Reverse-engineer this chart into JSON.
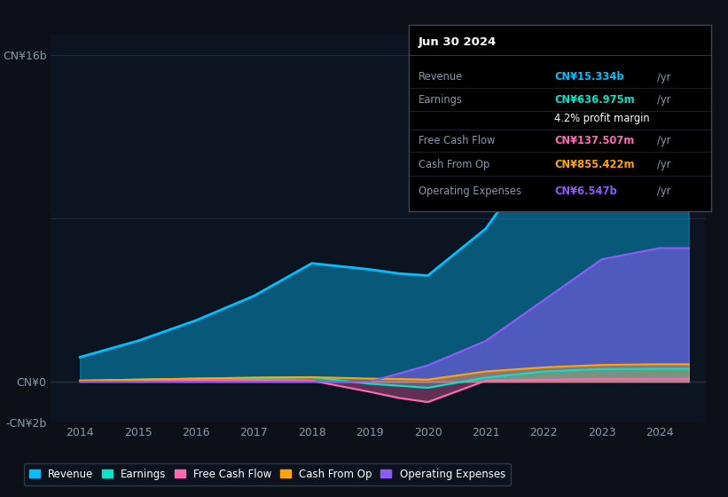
{
  "background_color": "#0d1117",
  "plot_bg_color": "#0d1421",
  "grid_color": "#1e2a3a",
  "ylim": [
    -2000000000,
    17000000000
  ],
  "years_x": [
    2014,
    2015,
    2016,
    2017,
    2018,
    2019,
    2019.5,
    2020,
    2021,
    2022,
    2023,
    2024,
    2024.5
  ],
  "revenue": [
    1200000000,
    2000000000,
    3000000000,
    4200000000,
    5800000000,
    5500000000,
    5300000000,
    5200000000,
    7500000000,
    11500000000,
    14800000000,
    15334000000,
    15334000000
  ],
  "earnings": [
    50000000,
    100000000,
    150000000,
    180000000,
    220000000,
    -100000000,
    -200000000,
    -300000000,
    200000000,
    500000000,
    620000000,
    636975000,
    636975000
  ],
  "free_cash_flow": [
    20000000,
    40000000,
    60000000,
    80000000,
    50000000,
    -500000000,
    -800000000,
    -1000000000,
    50000000,
    100000000,
    130000000,
    137507000,
    137507000
  ],
  "cash_from_op": [
    50000000,
    100000000,
    150000000,
    200000000,
    220000000,
    150000000,
    130000000,
    100000000,
    500000000,
    700000000,
    820000000,
    855422000,
    855422000
  ],
  "op_expenses": [
    0,
    0,
    0,
    0,
    0,
    0,
    400000000,
    800000000,
    2000000000,
    4000000000,
    6000000000,
    6547000000,
    6547000000
  ],
  "revenue_color": "#00bfff",
  "earnings_color": "#00e5cc",
  "fcf_color": "#ff69b4",
  "cashop_color": "#ffa500",
  "opex_color": "#8b5cf6",
  "info_box": {
    "date": "Jun 30 2024",
    "revenue_val": "CN¥15.334b",
    "earnings_val": "CN¥636.975m",
    "profit_margin": "4.2%",
    "fcf_val": "CN¥137.507m",
    "cashop_val": "CN¥855.422m",
    "opex_val": "CN¥6.547b"
  },
  "legend_items": [
    {
      "label": "Revenue",
      "color": "#00bfff"
    },
    {
      "label": "Earnings",
      "color": "#00e5cc"
    },
    {
      "label": "Free Cash Flow",
      "color": "#ff69b4"
    },
    {
      "label": "Cash From Op",
      "color": "#ffa500"
    },
    {
      "label": "Operating Expenses",
      "color": "#8b5cf6"
    }
  ]
}
